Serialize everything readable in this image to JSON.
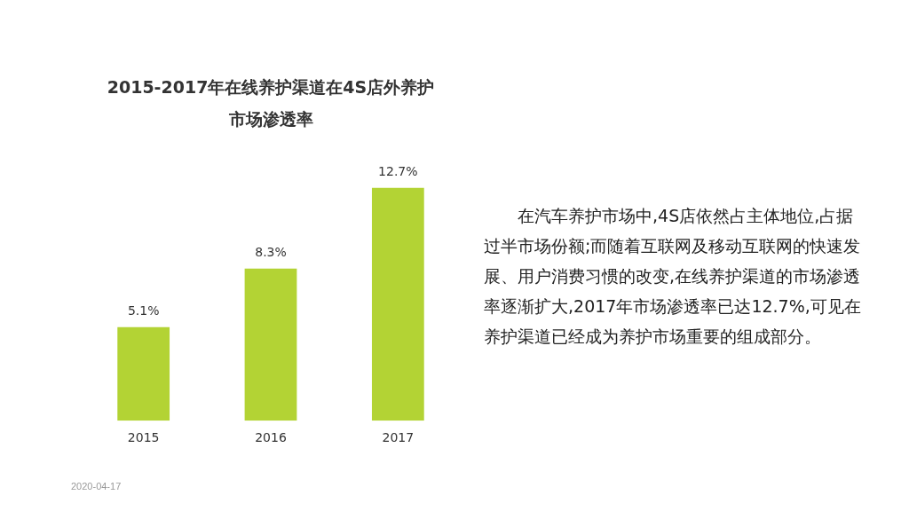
{
  "chart_data": {
    "type": "bar",
    "title": "2015-2017年在线养护渠道在4S店外养护市场渗透率",
    "categories": [
      "2015",
      "2016",
      "2017"
    ],
    "values": [
      5.1,
      8.3,
      12.7
    ],
    "value_labels": [
      "5.1%",
      "8.3%",
      "12.7%"
    ],
    "color": "#b3d334",
    "grid": false,
    "legend": false,
    "annotations": [
      "在汽车养护市场中,4S店依然占主体地位,占据过半市场份额;而随着互联网及移动互联网的快速发展、用户消费习惯的改变,在线养护渠道的市场渗透率逐渐扩大,2017年市场渗透率已达12.7%,可见在养护渠道已经成为养护市场重要的组成部分。",
      "2020-04-17"
    ]
  }
}
